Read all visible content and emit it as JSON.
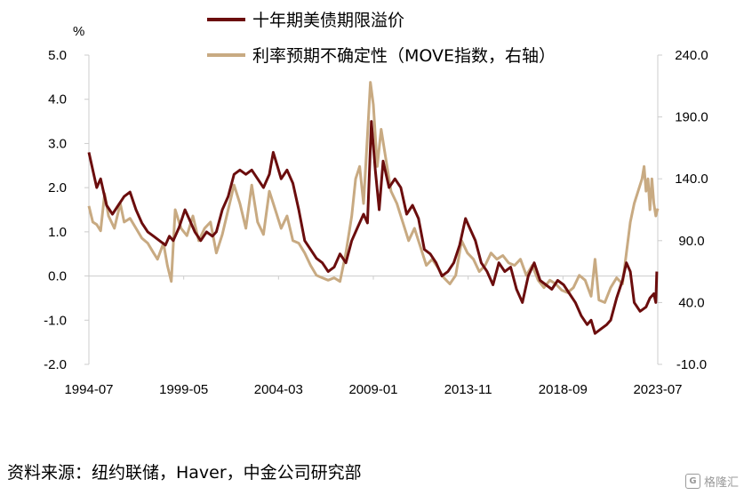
{
  "chart_data": {
    "type": "line",
    "unit_label": "%",
    "source": "资料来源：纽约联储，Haver，中金公司研究部",
    "watermark": "格隆汇",
    "x_tick_labels": [
      "1994-07",
      "1999-05",
      "2004-03",
      "2009-01",
      "2013-11",
      "2018-09",
      "2023-07"
    ],
    "x_range": [
      1994.5,
      2023.5
    ],
    "left_axis": {
      "ylim": [
        -2.0,
        5.0
      ],
      "ticks": [
        "5.0",
        "4.0",
        "3.0",
        "2.0",
        "1.0",
        "0.0",
        "-1.0",
        "-2.0"
      ]
    },
    "right_axis": {
      "ylim": [
        -10.0,
        240.0
      ],
      "ticks": [
        "240.0",
        "190.0",
        "140.0",
        "90.0",
        "40.0",
        "-10.0"
      ]
    },
    "grid": false,
    "legend_position": "top-center",
    "series": [
      {
        "name": "十年期美债期限溢价",
        "axis": "left",
        "color": "#6b0d0d",
        "points": [
          [
            1994.5,
            2.8
          ],
          [
            1994.7,
            2.4
          ],
          [
            1994.9,
            2.0
          ],
          [
            1995.1,
            2.2
          ],
          [
            1995.4,
            1.6
          ],
          [
            1995.7,
            1.4
          ],
          [
            1996.0,
            1.6
          ],
          [
            1996.3,
            1.8
          ],
          [
            1996.6,
            1.9
          ],
          [
            1996.9,
            1.5
          ],
          [
            1997.2,
            1.2
          ],
          [
            1997.5,
            1.0
          ],
          [
            1997.8,
            0.9
          ],
          [
            1998.1,
            0.8
          ],
          [
            1998.4,
            0.7
          ],
          [
            1998.6,
            0.9
          ],
          [
            1998.8,
            0.8
          ],
          [
            1999.1,
            1.1
          ],
          [
            1999.4,
            1.5
          ],
          [
            1999.6,
            1.3
          ],
          [
            1999.9,
            1.0
          ],
          [
            2000.2,
            0.8
          ],
          [
            2000.5,
            1.0
          ],
          [
            2000.8,
            0.9
          ],
          [
            2001.0,
            1.0
          ],
          [
            2001.3,
            1.5
          ],
          [
            2001.6,
            1.8
          ],
          [
            2001.9,
            2.3
          ],
          [
            2002.2,
            2.4
          ],
          [
            2002.5,
            2.3
          ],
          [
            2002.8,
            2.4
          ],
          [
            2003.1,
            2.2
          ],
          [
            2003.4,
            2.0
          ],
          [
            2003.7,
            2.3
          ],
          [
            2003.9,
            2.8
          ],
          [
            2004.1,
            2.5
          ],
          [
            2004.3,
            2.2
          ],
          [
            2004.6,
            2.4
          ],
          [
            2004.9,
            2.1
          ],
          [
            2005.2,
            1.5
          ],
          [
            2005.5,
            0.8
          ],
          [
            2005.8,
            0.6
          ],
          [
            2006.1,
            0.4
          ],
          [
            2006.4,
            0.3
          ],
          [
            2006.7,
            0.1
          ],
          [
            2007.0,
            0.2
          ],
          [
            2007.3,
            0.5
          ],
          [
            2007.6,
            0.3
          ],
          [
            2007.9,
            0.8
          ],
          [
            2008.2,
            1.1
          ],
          [
            2008.5,
            1.4
          ],
          [
            2008.7,
            1.2
          ],
          [
            2008.9,
            3.5
          ],
          [
            2009.1,
            2.4
          ],
          [
            2009.3,
            1.5
          ],
          [
            2009.5,
            2.6
          ],
          [
            2009.8,
            2.0
          ],
          [
            2010.1,
            2.2
          ],
          [
            2010.4,
            2.0
          ],
          [
            2010.7,
            1.4
          ],
          [
            2011.0,
            1.6
          ],
          [
            2011.3,
            1.3
          ],
          [
            2011.6,
            0.6
          ],
          [
            2011.9,
            0.5
          ],
          [
            2012.2,
            0.3
          ],
          [
            2012.5,
            0.0
          ],
          [
            2012.8,
            0.1
          ],
          [
            2013.1,
            0.3
          ],
          [
            2013.4,
            0.7
          ],
          [
            2013.7,
            1.3
          ],
          [
            2013.9,
            1.1
          ],
          [
            2014.2,
            0.8
          ],
          [
            2014.5,
            0.3
          ],
          [
            2014.8,
            0.1
          ],
          [
            2015.1,
            -0.2
          ],
          [
            2015.4,
            0.3
          ],
          [
            2015.7,
            0.1
          ],
          [
            2016.0,
            0.2
          ],
          [
            2016.3,
            -0.3
          ],
          [
            2016.6,
            -0.6
          ],
          [
            2016.9,
            0.0
          ],
          [
            2017.2,
            0.3
          ],
          [
            2017.5,
            -0.1
          ],
          [
            2017.8,
            -0.2
          ],
          [
            2018.1,
            -0.3
          ],
          [
            2018.4,
            -0.1
          ],
          [
            2018.7,
            -0.2
          ],
          [
            2019.0,
            -0.4
          ],
          [
            2019.3,
            -0.6
          ],
          [
            2019.6,
            -0.9
          ],
          [
            2019.9,
            -1.1
          ],
          [
            2020.1,
            -1.0
          ],
          [
            2020.3,
            -1.3
          ],
          [
            2020.6,
            -1.2
          ],
          [
            2020.9,
            -1.1
          ],
          [
            2021.1,
            -1.0
          ],
          [
            2021.4,
            -0.5
          ],
          [
            2021.7,
            -0.1
          ],
          [
            2021.9,
            0.3
          ],
          [
            2022.1,
            0.1
          ],
          [
            2022.3,
            -0.6
          ],
          [
            2022.6,
            -0.8
          ],
          [
            2022.9,
            -0.7
          ],
          [
            2023.1,
            -0.5
          ],
          [
            2023.3,
            -0.4
          ],
          [
            2023.4,
            -0.6
          ],
          [
            2023.45,
            0.1
          ]
        ]
      },
      {
        "name": "利率预期不确定性（MOVE指数，右轴）",
        "axis": "right",
        "color": "#c8aa82",
        "points": [
          [
            1994.5,
            118
          ],
          [
            1994.7,
            105
          ],
          [
            1994.9,
            103
          ],
          [
            1995.1,
            98
          ],
          [
            1995.3,
            128
          ],
          [
            1995.5,
            110
          ],
          [
            1995.8,
            100
          ],
          [
            1996.1,
            120
          ],
          [
            1996.3,
            105
          ],
          [
            1996.6,
            108
          ],
          [
            1996.9,
            100
          ],
          [
            1997.2,
            92
          ],
          [
            1997.5,
            88
          ],
          [
            1997.8,
            80
          ],
          [
            1998.0,
            75
          ],
          [
            1998.3,
            88
          ],
          [
            1998.5,
            70
          ],
          [
            1998.7,
            57
          ],
          [
            1998.9,
            115
          ],
          [
            1999.2,
            100
          ],
          [
            1999.5,
            94
          ],
          [
            1999.8,
            110
          ],
          [
            2000.1,
            90
          ],
          [
            2000.4,
            100
          ],
          [
            2000.7,
            105
          ],
          [
            2001.0,
            80
          ],
          [
            2001.3,
            95
          ],
          [
            2001.6,
            115
          ],
          [
            2001.9,
            135
          ],
          [
            2002.2,
            120
          ],
          [
            2002.5,
            100
          ],
          [
            2002.8,
            135
          ],
          [
            2003.1,
            105
          ],
          [
            2003.4,
            95
          ],
          [
            2003.7,
            130
          ],
          [
            2004.0,
            115
          ],
          [
            2004.3,
            100
          ],
          [
            2004.6,
            110
          ],
          [
            2004.9,
            90
          ],
          [
            2005.2,
            88
          ],
          [
            2005.5,
            80
          ],
          [
            2005.8,
            70
          ],
          [
            2006.1,
            62
          ],
          [
            2006.4,
            60
          ],
          [
            2006.7,
            58
          ],
          [
            2007.0,
            60
          ],
          [
            2007.3,
            57
          ],
          [
            2007.6,
            80
          ],
          [
            2007.9,
            110
          ],
          [
            2008.1,
            140
          ],
          [
            2008.3,
            150
          ],
          [
            2008.5,
            120
          ],
          [
            2008.7,
            175
          ],
          [
            2008.85,
            218
          ],
          [
            2009.0,
            200
          ],
          [
            2009.2,
            150
          ],
          [
            2009.4,
            180
          ],
          [
            2009.6,
            160
          ],
          [
            2009.9,
            130
          ],
          [
            2010.2,
            120
          ],
          [
            2010.5,
            105
          ],
          [
            2010.8,
            90
          ],
          [
            2011.1,
            100
          ],
          [
            2011.4,
            85
          ],
          [
            2011.7,
            70
          ],
          [
            2012.0,
            75
          ],
          [
            2012.3,
            68
          ],
          [
            2012.6,
            60
          ],
          [
            2012.9,
            55
          ],
          [
            2013.2,
            62
          ],
          [
            2013.5,
            90
          ],
          [
            2013.8,
            80
          ],
          [
            2014.1,
            75
          ],
          [
            2014.4,
            65
          ],
          [
            2014.7,
            70
          ],
          [
            2015.0,
            80
          ],
          [
            2015.3,
            75
          ],
          [
            2015.6,
            78
          ],
          [
            2015.9,
            72
          ],
          [
            2016.2,
            70
          ],
          [
            2016.5,
            75
          ],
          [
            2016.8,
            62
          ],
          [
            2017.1,
            70
          ],
          [
            2017.4,
            58
          ],
          [
            2017.7,
            52
          ],
          [
            2018.0,
            58
          ],
          [
            2018.3,
            55
          ],
          [
            2018.6,
            50
          ],
          [
            2018.9,
            48
          ],
          [
            2019.2,
            52
          ],
          [
            2019.5,
            62
          ],
          [
            2019.8,
            58
          ],
          [
            2020.1,
            45
          ],
          [
            2020.3,
            75
          ],
          [
            2020.5,
            42
          ],
          [
            2020.8,
            40
          ],
          [
            2021.1,
            52
          ],
          [
            2021.4,
            60
          ],
          [
            2021.7,
            55
          ],
          [
            2021.9,
            80
          ],
          [
            2022.1,
            105
          ],
          [
            2022.3,
            120
          ],
          [
            2022.5,
            130
          ],
          [
            2022.7,
            140
          ],
          [
            2022.8,
            150
          ],
          [
            2022.9,
            130
          ],
          [
            2023.0,
            140
          ],
          [
            2023.1,
            115
          ],
          [
            2023.2,
            140
          ],
          [
            2023.3,
            120
          ],
          [
            2023.4,
            110
          ],
          [
            2023.5,
            116
          ]
        ]
      }
    ]
  }
}
